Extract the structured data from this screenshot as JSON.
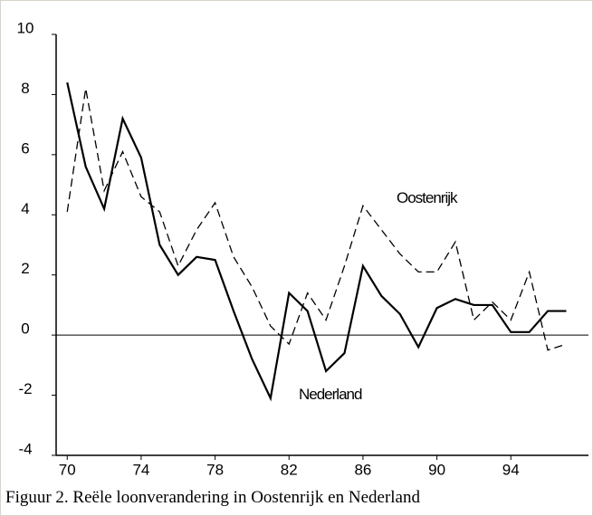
{
  "chart_data": {
    "type": "line",
    "caption": "Figuur 2. Reële loonverandering in Oostenrijk en Nederland",
    "x": [
      70,
      71,
      72,
      73,
      74,
      75,
      76,
      77,
      78,
      79,
      80,
      81,
      82,
      83,
      84,
      85,
      86,
      87,
      88,
      89,
      90,
      91,
      92,
      93,
      94,
      95,
      96,
      97
    ],
    "series": [
      {
        "name": "Nederland",
        "color": "#000000",
        "dash": false,
        "values": [
          8.4,
          5.6,
          4.2,
          7.2,
          5.9,
          3.0,
          2.0,
          2.6,
          2.5,
          0.8,
          -0.8,
          -2.1,
          1.4,
          0.8,
          -1.2,
          -0.6,
          2.3,
          1.3,
          0.7,
          -0.4,
          0.9,
          1.2,
          1.0,
          1.0,
          0.1,
          0.1,
          0.8,
          0.8
        ]
      },
      {
        "name": "Oostenrijk",
        "color": "#000000",
        "dash": true,
        "values": [
          4.1,
          8.2,
          4.8,
          6.1,
          4.6,
          4.1,
          2.3,
          3.5,
          4.4,
          2.6,
          1.6,
          0.3,
          -0.3,
          1.4,
          0.5,
          2.3,
          4.3,
          3.5,
          2.7,
          2.1,
          2.1,
          3.1,
          0.5,
          1.1,
          0.5,
          2.1,
          -0.5,
          -0.3
        ]
      }
    ],
    "xlim": [
      69.4,
      98.2
    ],
    "xticks": [
      70,
      74,
      78,
      82,
      86,
      90,
      94
    ],
    "ylim": [
      -4,
      10
    ],
    "yticks": [
      10,
      8,
      6,
      4,
      2,
      0,
      -2,
      -4
    ]
  }
}
